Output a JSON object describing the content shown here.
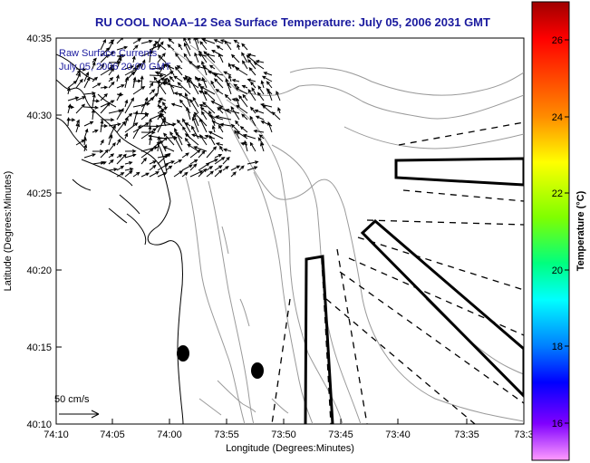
{
  "title": "RU COOL  NOAA–12  Sea Surface Temperature:  July 05, 2006 2031 GMT",
  "legend": {
    "line1": "Raw Surface Currents",
    "line2": "July 05, 2006 20:00 GMT"
  },
  "scale_label": "50 cm/s",
  "axes": {
    "xlabel": "Longitude (Degrees:Minutes)",
    "ylabel": "Latitude (Degrees:Minutes)",
    "xticks": [
      "74:10",
      "74:05",
      "74:00",
      "73:55",
      "73:50",
      "73:45",
      "73:40",
      "73:35",
      "73:3"
    ],
    "yticks": [
      "40:35",
      "40:30",
      "40:25",
      "40:20",
      "40:15",
      "40:10"
    ]
  },
  "colorbar": {
    "label": "Temperature (°C)",
    "ticks": [
      "26",
      "24",
      "22",
      "20",
      "18",
      "16"
    ],
    "colors": [
      "#cc0000",
      "#ff0000",
      "#ff8000",
      "#ffff00",
      "#80ff00",
      "#00ff80",
      "#00ffff",
      "#0080ff",
      "#0000ff",
      "#8000ff",
      "#ff80ff"
    ]
  },
  "chart_data": {
    "type": "map",
    "title": "RU COOL  NOAA–12  Sea Surface Temperature:  July 05, 2006 2031 GMT",
    "xlabel": "Longitude (Degrees:Minutes)",
    "ylabel": "Latitude (Degrees:Minutes)",
    "xlim": [
      "74:10",
      "73:3"
    ],
    "ylim": [
      "40:10",
      "40:35"
    ],
    "colorbar_range": [
      15.4,
      27.2
    ],
    "colorbar_unit": "Temperature (°C)"
  }
}
